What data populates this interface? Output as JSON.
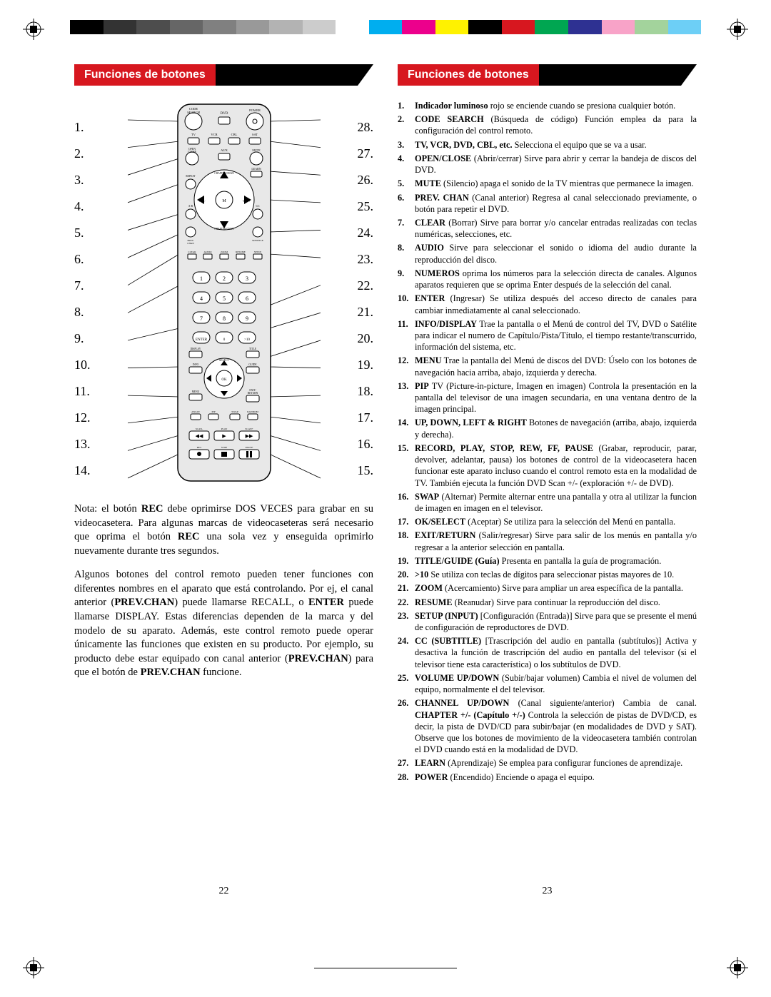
{
  "colorbar": [
    "#000000",
    "#333333",
    "#4d4d4d",
    "#666666",
    "#808080",
    "#999999",
    "#b3b3b3",
    "#cccccc",
    "#ffffff",
    "#00aeef",
    "#ec008c",
    "#fff200",
    "#000000",
    "#d7171f",
    "#00a651",
    "#2e3192",
    "#f8a3c8",
    "#a3d39c",
    "#6dcff6"
  ],
  "header": {
    "title": "Funciones de botones"
  },
  "left": {
    "numbers_left": [
      "1.",
      "2.",
      "3.",
      "4.",
      "5.",
      "6.",
      "7.",
      "8.",
      "9.",
      "10.",
      "11.",
      "12.",
      "13.",
      "14."
    ],
    "numbers_right": [
      "28.",
      "27.",
      "26.",
      "25.",
      "24.",
      "23.",
      "22.",
      "21.",
      "20.",
      "19.",
      "18.",
      "17.",
      "16.",
      "15."
    ],
    "note1_a": "Nota: el botón ",
    "note1_b": "REC",
    "note1_c": " debe oprimirse DOS VECES para grabar en su videocasetera. Para algunas marcas de videocaseteras será necesario que oprima el botón ",
    "note1_d": "REC",
    "note1_e": " una sola vez y enseguida oprimirlo nuevamente durante tres segundos.",
    "note2_a": "Algunos botones del control remoto pueden tener funciones con diferentes nombres en el aparato que está controlando. Por ej, el canal anterior (",
    "note2_b": "PREV.CHAN",
    "note2_c": ") puede llamarse RECALL, o ",
    "note2_d": "ENTER",
    "note2_e": " puede llamarse DISPLAY. Estas diferencias dependen de la marca y del modelo de su aparato. Además, este control remoto puede operar únicamente las funciones que existen en su producto. Por ejemplo, su producto debe estar equipado con canal anterior (",
    "note2_f": "PREV.CHAN",
    "note2_g": ") para que el botón de ",
    "note2_h": "PREV.CHAN",
    "note2_i": " funcione.",
    "page_number": "22"
  },
  "right": {
    "items": [
      {
        "n": "1.",
        "b": "Indicador luminoso",
        "t": " rojo se enciende cuando se presiona cualquier botón."
      },
      {
        "n": "2.",
        "b": "CODE SEARCH",
        "t": " (Búsqueda de código) Función emplea da para la configuración del control remoto."
      },
      {
        "n": "3.",
        "b": "TV, VCR, DVD, CBL, etc.",
        "t": " Selecciona el equipo que se va a usar."
      },
      {
        "n": "4.",
        "b": "OPEN/CLOSE",
        "t": " (Abrir/cerrar) Sirve para abrir y cerrar la bandeja de discos del DVD."
      },
      {
        "n": "5.",
        "b": "MUTE",
        "t": " (Silencio) apaga el sonido de la TV mientras que permanece la imagen."
      },
      {
        "n": "6.",
        "b": "PREV. CHAN",
        "t": " (Canal anterior) Regresa al canal seleccionado previamente, o botón para repetir el DVD."
      },
      {
        "n": "7.",
        "b": "CLEAR",
        "t": " (Borrar) Sirve para borrar y/o cancelar entradas realizadas con teclas numéricas, selecciones, etc."
      },
      {
        "n": "8.",
        "b": "AUDIO",
        "t": " Sirve para seleccionar el sonido o idioma del audio durante la reproducción del disco."
      },
      {
        "n": "9.",
        "b": "NUMEROS",
        "t": " oprima los números para la selección directa de canales. Algunos aparatos requieren que se oprima Enter después de la selección del canal."
      },
      {
        "n": "10.",
        "b": "ENTER",
        "t": " (Ingresar) Se utiliza después del acceso directo de canales para cambiar inmediatamente al canal seleccionado."
      },
      {
        "n": "11.",
        "b": "INFO/DISPLAY",
        "t": " Trae la pantalla o el Menú de control del TV, DVD o Satélite para indicar el numero de Capítulo/Pista/Título, el tiempo restante/transcurrido, información del sistema, etc."
      },
      {
        "n": "12.",
        "b": "MENU",
        "t": " Trae la pantalla del Menú de discos del DVD: Úselo con los botones de navegación hacia arriba, abajo, izquierda y derecha."
      },
      {
        "n": "13.",
        "b": "PIP",
        "t": " TV (Picture-in-picture, Imagen en imagen) Controla la presentación en la pantalla del televisor de una imagen secundaria, en una ventana dentro de la imagen principal."
      },
      {
        "n": "14.",
        "b": "UP, DOWN, LEFT & RIGHT",
        "t": " Botones de navegación (arriba, abajo, izquierda y derecha)."
      },
      {
        "n": "15.",
        "b": "RECORD, PLAY, STOP, REW, FF, PAUSE",
        "t": " (Grabar, reproducir, parar, devolver, adelantar, pausa) los botones de control de la videocasetera hacen funcionar este aparato incluso cuando el control remoto esta en la modalidad de TV. También ejecuta la función DVD Scan +/- (exploración +/- de DVD)."
      },
      {
        "n": "16.",
        "b": "SWAP",
        "t": " (Alternar) Permite alternar entre una pantalla y otra al utilizar la funcion de imagen en imagen en el televisor."
      },
      {
        "n": "17.",
        "b": "OK/SELECT",
        "t": " (Aceptar) Se utiliza para la selección del Menú en pantalla."
      },
      {
        "n": "18.",
        "b": "EXIT/RETURN",
        "t": " (Salir/regresar) Sirve para salir de los menús en pantalla y/o regresar a la anterior selección en pantalla."
      },
      {
        "n": "19.",
        "b": "TITLE/GUIDE (Guía)",
        "t": " Presenta en pantalla la guía de programación."
      },
      {
        "n": "20.",
        "b": ">10",
        "t": " Se utiliza con teclas de dígitos para seleccionar pistas mayores de 10."
      },
      {
        "n": "21.",
        "b": "ZOOM",
        "t": " (Acercamiento) Sirve para ampliar un area específica de la pantalla."
      },
      {
        "n": "22.",
        "b": "RESUME",
        "t": " (Reanudar) Sirve para continuar la reproducción del disco."
      },
      {
        "n": "23.",
        "b": "SETUP (INPUT)",
        "t": " [Configuración (Entrada)] Sirve para que se presente el menú de configuración de reproductores de DVD."
      },
      {
        "n": "24.",
        "b": "CC (SUBTITLE)",
        "t": " [Trascripción del audio en pantalla (subtítulos)] Activa y desactiva la función de trascripción del audio en pantalla del televisor (si el televisor tiene esta característica) o los subtítulos de DVD."
      },
      {
        "n": "25.",
        "b": "VOLUME UP/DOWN",
        "t": " (Subir/bajar volumen) Cambia el nivel de volumen del equipo, normalmente el del televisor."
      },
      {
        "n": "26.",
        "b": "CHANNEL UP/DOWN",
        "t": " (Canal siguiente/anterior) Cambia de canal. <b>CHAPTER +/- (Capítulo +/-)</b> Controla la selección de pistas de DVD/CD, es decir, la pista de DVD/CD para subir/bajar (en modalidades de DVD y SAT).  Observe que los botones de movimiento de la videocasetera también controlan el DVD cuando está en la modalidad de DVD."
      },
      {
        "n": "27.",
        "b": "LEARN",
        "t": " (Aprendizaje) Se emplea para configurar funciones de aprendizaje."
      },
      {
        "n": "28.",
        "b": "POWER",
        "t": " (Encendido) Enciende o apaga el equipo."
      }
    ],
    "page_number": "23"
  },
  "remote": {
    "body_fill": "#e8e8e8",
    "body_stroke": "#000000",
    "btn_labels_top": [
      "CODE SEARCH",
      "DVD",
      "POWER",
      "TV",
      "VCR",
      "AUX",
      "CBL",
      "SAT",
      "OPEN CLOSE",
      "MUTE",
      "LEARN"
    ],
    "dpad_labels": [
      "CHAPTER/CHAN",
      "VOL-",
      "VOL+",
      "M",
      "REPEAT",
      "A-B",
      "PREV. CHAN",
      "CC"
    ],
    "mid_row_labels": [
      "CLEAR",
      "AUDIO",
      "ZOOM",
      "RESUME",
      "SETUP",
      "SUBTITLE",
      "INPUT"
    ],
    "keypad": [
      "1",
      "2",
      "3",
      "4",
      "5",
      "6",
      "7",
      "8",
      "9",
      "ENTER",
      "0",
      ">10"
    ],
    "nav_labels": [
      "DISPLAY",
      "TITLE",
      "INFO",
      "GUIDE",
      "MENU",
      "EXIT/RETURN",
      "SELECT",
      "OK",
      "ANGLE",
      "PIP",
      "SWAP",
      "RANDOM"
    ],
    "transport_labels": [
      "SCAN-",
      "PLAY",
      "SCAN+",
      "REC",
      "STOP",
      "PAUSE"
    ]
  }
}
